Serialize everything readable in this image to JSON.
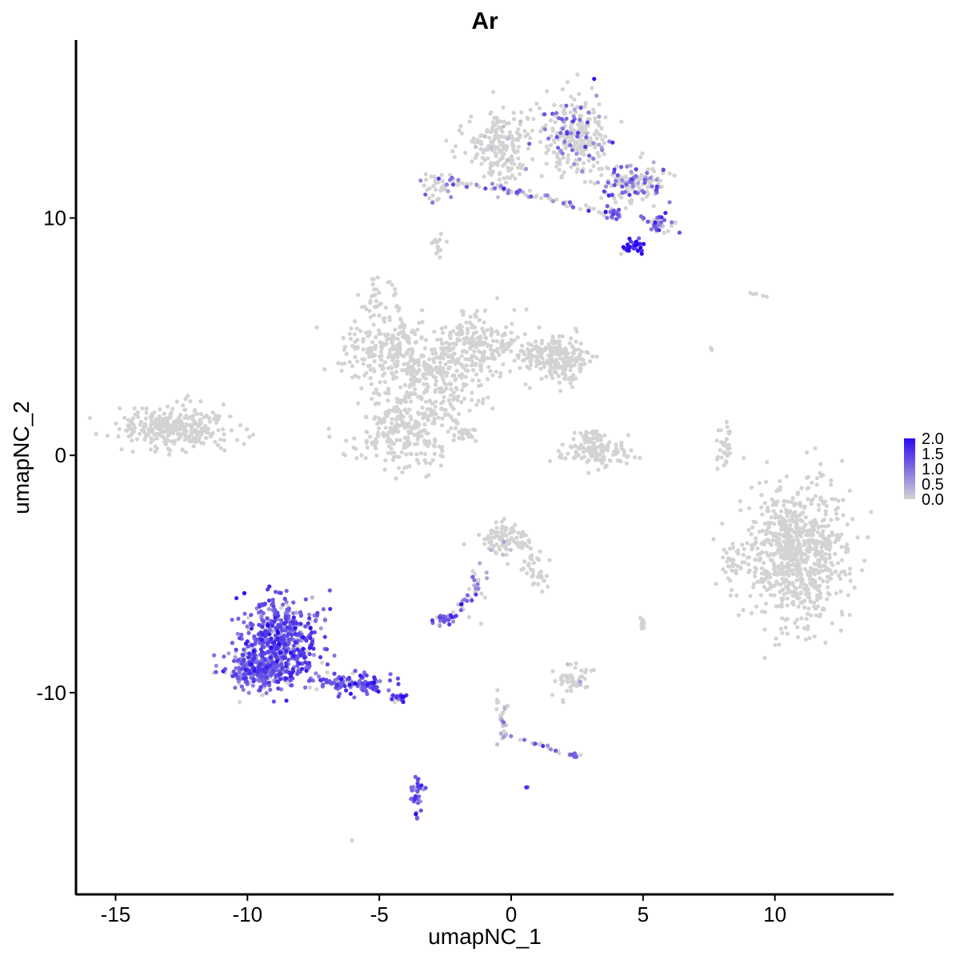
{
  "chart_data": {
    "type": "scatter",
    "title": "Ar",
    "xlabel": "umapNC_1",
    "ylabel": "umapNC_2",
    "xlim": [
      -16.5,
      14.5
    ],
    "ylim": [
      -18.5,
      17.5
    ],
    "x_ticks": [
      -15,
      -10,
      -5,
      0,
      5,
      10
    ],
    "x_tick_labels": [
      "-15",
      "-10",
      "-5",
      "0",
      "5",
      "10"
    ],
    "y_ticks": [
      10,
      0,
      -10
    ],
    "y_tick_labels": [
      "10",
      "0",
      "-10"
    ],
    "grid": false,
    "legend": {
      "placement": "right",
      "type": "colorbar",
      "labels": [
        "2.0",
        "1.5",
        "1.0",
        "0.5",
        "0.0"
      ],
      "values": [
        2.0,
        1.5,
        1.0,
        0.5,
        0.0
      ],
      "range": [
        0.0,
        2.0
      ],
      "low_color": "#d3d3d3",
      "high_color": "#2a0af0"
    },
    "clusters": [
      {
        "cx": -12.7,
        "cy": 1.2,
        "sx": 1.4,
        "sy": 0.6,
        "n": 300,
        "expr": 0.0,
        "frac": 0.0
      },
      {
        "cx": -5.0,
        "cy": 4.4,
        "sx": 1.1,
        "sy": 0.9,
        "n": 180,
        "expr": 0.0,
        "frac": 0.0
      },
      {
        "cx": -2.8,
        "cy": 3.3,
        "sx": 1.2,
        "sy": 1.3,
        "n": 240,
        "expr": 0.0,
        "frac": 0.0
      },
      {
        "cx": -4.2,
        "cy": 1.0,
        "sx": 1.3,
        "sy": 1.0,
        "n": 230,
        "expr": 0.0,
        "frac": 0.0
      },
      {
        "cx": -1.1,
        "cy": 4.7,
        "sx": 0.9,
        "sy": 0.8,
        "n": 150,
        "expr": 0.0,
        "frac": 0.0
      },
      {
        "cx": 1.3,
        "cy": 4.2,
        "sx": 0.9,
        "sy": 0.6,
        "n": 150,
        "expr": 0.0,
        "frac": 0.0
      },
      {
        "cx": 2.1,
        "cy": 3.8,
        "sx": 0.5,
        "sy": 0.5,
        "n": 80,
        "expr": 0.0,
        "frac": 0.0
      },
      {
        "cx": -5.2,
        "cy": 6.7,
        "sx": 0.2,
        "sy": 0.5,
        "n": 20,
        "expr": 0.0,
        "frac": 0.0
      },
      {
        "cx": -1.8,
        "cy": 1.0,
        "sx": 0.3,
        "sy": 0.3,
        "n": 15,
        "expr": 0.0,
        "frac": 0.0
      },
      {
        "cx": 3.2,
        "cy": 0.1,
        "sx": 0.9,
        "sy": 0.4,
        "n": 110,
        "expr": 0.0,
        "frac": 0.0
      },
      {
        "cx": 3.0,
        "cy": 0.8,
        "sx": 0.4,
        "sy": 0.3,
        "n": 30,
        "expr": 0.0,
        "frac": 0.0
      },
      {
        "cx": 8.1,
        "cy": 0.3,
        "sx": 0.2,
        "sy": 0.6,
        "n": 30,
        "expr": 0.0,
        "frac": 0.0
      },
      {
        "cx": 10.8,
        "cy": -4.2,
        "sx": 1.3,
        "sy": 1.9,
        "n": 800,
        "expr": 0.0,
        "frac": 0.0
      },
      {
        "cx": 8.4,
        "cy": -4.5,
        "sx": 0.2,
        "sy": 0.4,
        "n": 25,
        "expr": 0.0,
        "frac": 0.0
      },
      {
        "cx": -0.3,
        "cy": -3.6,
        "sx": 0.6,
        "sy": 0.5,
        "n": 90,
        "expr": 0.0,
        "frac": 0.05
      },
      {
        "cx": 0.9,
        "cy": -4.8,
        "sx": 0.4,
        "sy": 0.5,
        "n": 30,
        "expr": 0.0,
        "frac": 0.0
      },
      {
        "cx": -1.4,
        "cy": -5.6,
        "sx": 0.3,
        "sy": 0.8,
        "n": 25,
        "expr": 0.8,
        "frac": 0.6
      },
      {
        "cx": -2.5,
        "cy": -6.9,
        "sx": 0.3,
        "sy": 0.2,
        "n": 30,
        "expr": 1.2,
        "frac": 0.8
      },
      {
        "cx": 2.3,
        "cy": -9.4,
        "sx": 0.4,
        "sy": 0.4,
        "n": 50,
        "expr": 0.0,
        "frac": 0.05
      },
      {
        "cx": 5.0,
        "cy": -7.2,
        "sx": 0.1,
        "sy": 0.2,
        "n": 10,
        "expr": 0.0,
        "frac": 0.0
      },
      {
        "cx": -8.7,
        "cy": -7.8,
        "sx": 1.0,
        "sy": 1.1,
        "n": 500,
        "expr": 1.2,
        "frac": 0.9
      },
      {
        "cx": -9.6,
        "cy": -9.0,
        "sx": 0.8,
        "sy": 0.6,
        "n": 250,
        "expr": 1.1,
        "frac": 0.85
      },
      {
        "cx": -6.0,
        "cy": -9.6,
        "sx": 1.0,
        "sy": 0.3,
        "n": 120,
        "expr": 1.2,
        "frac": 0.9
      },
      {
        "cx": -4.3,
        "cy": -10.3,
        "sx": 0.3,
        "sy": 0.15,
        "n": 20,
        "expr": 1.5,
        "frac": 0.9
      },
      {
        "cx": -3.5,
        "cy": -14.3,
        "sx": 0.2,
        "sy": 0.6,
        "n": 30,
        "expr": 1.2,
        "frac": 0.9
      },
      {
        "cx": -0.3,
        "cy": -11.2,
        "sx": 0.2,
        "sy": 0.8,
        "n": 15,
        "expr": 0.5,
        "frac": 0.4
      },
      {
        "cx": 2.4,
        "cy": -12.6,
        "sx": 0.2,
        "sy": 0.1,
        "n": 10,
        "expr": 1.2,
        "frac": 0.7
      },
      {
        "cx": -0.3,
        "cy": 13.0,
        "sx": 0.9,
        "sy": 1.1,
        "n": 200,
        "expr": 0.0,
        "frac": 0.05
      },
      {
        "cx": 2.4,
        "cy": 13.4,
        "sx": 0.8,
        "sy": 1.2,
        "n": 250,
        "expr": 1.0,
        "frac": 0.2
      },
      {
        "cx": 4.6,
        "cy": 11.5,
        "sx": 0.9,
        "sy": 0.6,
        "n": 150,
        "expr": 1.0,
        "frac": 0.35
      },
      {
        "cx": 5.6,
        "cy": 9.8,
        "sx": 0.5,
        "sy": 0.3,
        "n": 40,
        "expr": 1.2,
        "frac": 0.6
      },
      {
        "cx": 4.6,
        "cy": 8.8,
        "sx": 0.3,
        "sy": 0.2,
        "n": 30,
        "expr": 1.8,
        "frac": 0.9
      },
      {
        "cx": -2.8,
        "cy": 11.3,
        "sx": 0.4,
        "sy": 0.4,
        "n": 40,
        "expr": 1.0,
        "frac": 0.3
      },
      {
        "cx": 3.9,
        "cy": 10.2,
        "sx": 0.3,
        "sy": 0.15,
        "n": 15,
        "expr": 1.2,
        "frac": 0.7
      },
      {
        "cx": -2.8,
        "cy": 8.8,
        "sx": 0.2,
        "sy": 0.3,
        "n": 15,
        "expr": 0.0,
        "frac": 0.0
      },
      {
        "cx": 9.4,
        "cy": 6.8,
        "sx": 0.3,
        "sy": 0.1,
        "n": 5,
        "expr": 0.0,
        "frac": 0.0
      },
      {
        "cx": 7.6,
        "cy": 4.6,
        "sx": 0.05,
        "sy": 0.15,
        "n": 3,
        "expr": 0.0,
        "frac": 0.0
      },
      {
        "cx": -6.0,
        "cy": -16.2,
        "sx": 0.05,
        "sy": 0.05,
        "n": 2,
        "expr": 0.0,
        "frac": 0.0
      },
      {
        "cx": 0.6,
        "cy": -14.0,
        "sx": 0.05,
        "sy": 0.05,
        "n": 2,
        "expr": 1.2,
        "frac": 1.0
      }
    ],
    "segments": [
      {
        "x1": -2.8,
        "y1": 11.6,
        "x2": 1.0,
        "y2": 11.0,
        "n": 45,
        "jitter": 0.15,
        "expr": 1.1,
        "frac": 0.35
      },
      {
        "x1": 1.0,
        "y1": 11.0,
        "x2": 4.0,
        "y2": 10.0,
        "n": 30,
        "jitter": 0.15,
        "expr": 1.2,
        "frac": 0.3
      },
      {
        "x1": -4.5,
        "y1": 1.8,
        "x2": -1.4,
        "y2": 6.0,
        "n": 60,
        "jitter": 0.25,
        "expr": 0.0,
        "frac": 0.0
      },
      {
        "x1": -4.6,
        "y1": 7.4,
        "x2": -3.6,
        "y2": 3.0,
        "n": 35,
        "jitter": 0.15,
        "expr": 0.0,
        "frac": 0.0
      },
      {
        "x1": -2.5,
        "y1": 1.8,
        "x2": -1.2,
        "y2": 0.5,
        "n": 20,
        "jitter": 0.1,
        "expr": 0.0,
        "frac": 0.0
      },
      {
        "x1": -1.5,
        "y1": -5.2,
        "x2": -1.9,
        "y2": -6.6,
        "n": 12,
        "jitter": 0.1,
        "expr": 1.0,
        "frac": 0.7
      },
      {
        "x1": -0.6,
        "y1": -10.2,
        "x2": -0.2,
        "y2": -12.0,
        "n": 15,
        "jitter": 0.1,
        "expr": 0.6,
        "frac": 0.4
      },
      {
        "x1": 0.0,
        "y1": -11.8,
        "x2": 2.2,
        "y2": -12.6,
        "n": 15,
        "jitter": 0.1,
        "expr": 1.0,
        "frac": 0.5
      },
      {
        "x1": 0.3,
        "y1": -3.0,
        "x2": 1.4,
        "y2": -5.6,
        "n": 15,
        "jitter": 0.15,
        "expr": 0.0,
        "frac": 0.0
      }
    ]
  }
}
